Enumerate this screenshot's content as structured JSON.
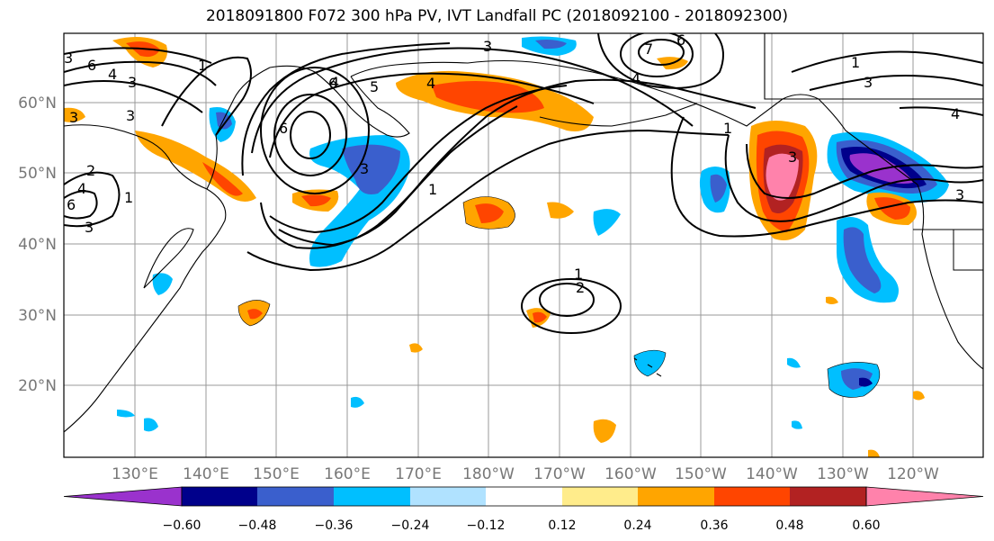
{
  "title": "2018091800 F072 300 hPa PV, IVT Landfall PC (2018092100 - 2018092300)",
  "lat_labels": [
    "60°N",
    "50°N",
    "40°N",
    "30°N",
    "20°N"
  ],
  "lon_labels": [
    "130°E",
    "140°E",
    "150°E",
    "160°E",
    "170°E",
    "180°W",
    "170°W",
    "160°W",
    "150°W",
    "140°W",
    "130°W",
    "120°W"
  ],
  "colorbar": {
    "colors": [
      "#9a32cd",
      "#00008b",
      "#3a5fcd",
      "#00bfff",
      "#b0e2ff",
      "#ffffff",
      "#ffec8b",
      "#ffa500",
      "#ff4500",
      "#b22222",
      "#ff82ab"
    ],
    "tick_labels": [
      "−0.60",
      "−0.48",
      "−0.36",
      "−0.24",
      "−0.12",
      "0.12",
      "0.24",
      "0.36",
      "0.48",
      "0.60"
    ]
  },
  "contour_labels": [
    "3",
    "6",
    "4",
    "3",
    "3",
    "1",
    "4",
    "5",
    "6",
    "4",
    "3",
    "1",
    "3",
    "7",
    "6",
    "4",
    "1",
    "3",
    "4",
    "3",
    "1",
    "2",
    "3",
    "6",
    "4",
    "1",
    "1",
    "2",
    "6",
    "3",
    "3"
  ]
}
